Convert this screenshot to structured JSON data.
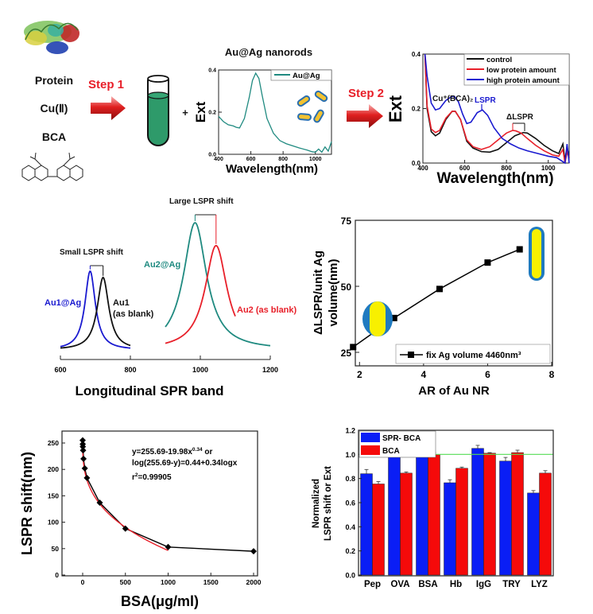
{
  "figure": {
    "scheme": {
      "reagents": [
        "Protein",
        "Cu(Ⅱ)",
        "BCA"
      ],
      "step1_label": "Step 1",
      "step2_label": "Step 2",
      "plus": "+",
      "nanorods_title": "Au@Ag nanorods",
      "colors": {
        "step": "#e8202a",
        "tube": "#2e9a6a",
        "rod_core": "#f2c230",
        "rod_shell": "#2a6fb0"
      }
    }
  },
  "chart_data": [
    {
      "id": "auag-spectrum",
      "type": "line",
      "title": "",
      "xlabel": "Wavelength(nm)",
      "ylabel": "Ext",
      "xlim": [
        400,
        1100
      ],
      "ylim": [
        0.0,
        0.4
      ],
      "xticks": [
        "400",
        "600",
        "800",
        "1000"
      ],
      "yticks": [
        "0.0",
        "0.2",
        "0.4"
      ],
      "legend": {
        "placement": "top-right",
        "entries": [
          "Au@Ag"
        ]
      },
      "series": [
        {
          "name": "Au@Ag",
          "color": "#1f8a80",
          "x": [
            400,
            430,
            460,
            490,
            510,
            530,
            560,
            590,
            610,
            630,
            650,
            670,
            700,
            740,
            780,
            820,
            860,
            900,
            950,
            980,
            1000,
            1020,
            1040,
            1060,
            1080,
            1100
          ],
          "y": [
            0.18,
            0.155,
            0.14,
            0.135,
            0.128,
            0.125,
            0.17,
            0.27,
            0.35,
            0.385,
            0.36,
            0.28,
            0.17,
            0.1,
            0.065,
            0.05,
            0.04,
            0.03,
            0.02,
            0.012,
            0.01,
            0.025,
            0.01,
            0.035,
            0.015,
            0.06
          ]
        }
      ]
    },
    {
      "id": "protein-spectra",
      "type": "line",
      "xlabel": "Wavelength(nm)",
      "ylabel": "Ext",
      "xlim": [
        400,
        1100
      ],
      "ylim": [
        0.0,
        0.4
      ],
      "xticks": [
        "400",
        "600",
        "800",
        "1000"
      ],
      "yticks": [
        "0.0",
        "0.2",
        "0.4"
      ],
      "legend": {
        "placement": "top-right",
        "entries": [
          "control",
          "low protein amount",
          "high protein amount"
        ]
      },
      "annotations": [
        {
          "text": "Cu⁺(BCA)₂",
          "color": "#111111"
        },
        {
          "text": "LSPR",
          "color": "#1a1ad0"
        },
        {
          "text": "ΔLSPR",
          "color": "#111111"
        }
      ],
      "series": [
        {
          "name": "control",
          "color": "#111111",
          "x": [
            410,
            420,
            440,
            460,
            480,
            510,
            540,
            555,
            580,
            610,
            640,
            680,
            720,
            760,
            800,
            840,
            880,
            900,
            940,
            980,
            1020,
            1050,
            1070,
            1080,
            1090,
            1100
          ],
          "y": [
            0.4,
            0.2,
            0.115,
            0.1,
            0.11,
            0.16,
            0.19,
            0.19,
            0.16,
            0.08,
            0.055,
            0.042,
            0.04,
            0.05,
            0.075,
            0.1,
            0.112,
            0.11,
            0.09,
            0.065,
            0.045,
            0.035,
            0.07,
            0.01,
            0.06,
            0.02
          ]
        },
        {
          "name": "low protein amount",
          "color": "#e8202a",
          "x": [
            410,
            420,
            440,
            460,
            480,
            510,
            540,
            555,
            580,
            610,
            640,
            680,
            720,
            760,
            800,
            830,
            845,
            870,
            900,
            940,
            980,
            1020,
            1050,
            1070,
            1080,
            1090,
            1100
          ],
          "y": [
            0.4,
            0.21,
            0.125,
            0.112,
            0.12,
            0.165,
            0.19,
            0.19,
            0.16,
            0.085,
            0.06,
            0.05,
            0.06,
            0.085,
            0.11,
            0.12,
            0.118,
            0.11,
            0.09,
            0.065,
            0.045,
            0.03,
            0.025,
            0.05,
            0.0,
            0.04,
            0.02
          ]
        },
        {
          "name": "high protein amount",
          "color": "#1a1ad0",
          "x": [
            410,
            420,
            440,
            460,
            480,
            510,
            540,
            550,
            570,
            590,
            610,
            630,
            660,
            685,
            710,
            740,
            780,
            820,
            860,
            900,
            950,
            1000,
            1040,
            1060,
            1080,
            1090,
            1100
          ],
          "y": [
            0.4,
            0.32,
            0.22,
            0.195,
            0.2,
            0.23,
            0.245,
            0.245,
            0.225,
            0.18,
            0.145,
            0.15,
            0.185,
            0.195,
            0.175,
            0.13,
            0.09,
            0.07,
            0.055,
            0.045,
            0.035,
            0.025,
            0.02,
            0.01,
            0.0,
            0.07,
            0.0
          ]
        }
      ]
    },
    {
      "id": "lspr-shift-scheme",
      "type": "line",
      "xlabel": "Longitudinal SPR band",
      "xlim": [
        600,
        1200
      ],
      "xticks": [
        "600",
        "800",
        "1000",
        "1200"
      ],
      "annotations": [
        {
          "text": "Small LSPR shift",
          "color": "#111111"
        },
        {
          "text": "Large LSPR shift",
          "color": "#111111"
        }
      ],
      "series": [
        {
          "name": "Au1@Ag",
          "color": "#1a1ad0",
          "peak": 685,
          "range": [
            600,
            800
          ],
          "height": 0.62
        },
        {
          "name": "Au1",
          "sub": "(as blank)",
          "color": "#111111",
          "peak": 722,
          "range": [
            600,
            800
          ],
          "height": 0.57
        },
        {
          "name": "Au2@Ag",
          "color": "#1f8a80",
          "peak": 985,
          "range": [
            900,
            1200
          ],
          "height": 1.0
        },
        {
          "name": "Au2 (as blank)",
          "color": "#e8202a",
          "peak": 1045,
          "range": [
            900,
            1100
          ],
          "height": 0.82
        }
      ]
    },
    {
      "id": "ar-dependence",
      "type": "line",
      "xlabel": "AR of Au NR",
      "ylabel": "ΔLSPR/unit Ag volume(nm)",
      "xlim": [
        1,
        8
      ],
      "ylim": [
        20,
        75
      ],
      "xticks": [
        "2",
        "4",
        "6",
        "8"
      ],
      "yticks": [
        "25",
        "50",
        "75"
      ],
      "legend": {
        "placement": "bottom-right",
        "entries": [
          "fix Ag volume 4460nm³"
        ]
      },
      "series": [
        {
          "name": "fix Ag volume 4460nm³",
          "color": "#000000",
          "x": [
            1.8,
            3.08,
            4.5,
            6.0,
            7.0
          ],
          "y": [
            27,
            38,
            49,
            59,
            64
          ]
        }
      ]
    },
    {
      "id": "bsa-calibration",
      "type": "scatter",
      "xlabel": "BSA(μg/ml)",
      "ylabel": "LSPR shift(nm)",
      "xlim": [
        -250,
        2050
      ],
      "ylim": [
        0,
        275
      ],
      "xticks": [
        "0",
        "500",
        "1000",
        "1500",
        "2000"
      ],
      "yticks": [
        "0",
        "50",
        "100",
        "150",
        "200",
        "250"
      ],
      "annotations": [
        {
          "text": "y=255.69-19.98x",
          "sup": "0.34",
          "tail": " or"
        },
        {
          "text": "log(255.69-y)=0.44+0.34logx"
        },
        {
          "text": "r",
          "sup": "2",
          "tail": "=0.99905"
        }
      ],
      "series": [
        {
          "name": "data",
          "color": "#000000",
          "x": [
            0,
            1,
            2,
            5,
            10,
            25,
            50,
            200,
            500,
            1000,
            2000
          ],
          "y": [
            255,
            248,
            243,
            236,
            220,
            202,
            184,
            137,
            88,
            53,
            45
          ]
        },
        {
          "name": "fit",
          "color": "#e8202a",
          "equation": "y=255.69-19.98x^0.34",
          "x_range": [
            0,
            1000
          ]
        }
      ]
    },
    {
      "id": "protein-selectivity",
      "type": "bar",
      "ylabel": "Normalized LSPR shift or Ext",
      "ylim": [
        0.0,
        1.2
      ],
      "yticks": [
        "0.0",
        "0.2",
        "0.4",
        "0.6",
        "0.8",
        "1.0",
        "1.2"
      ],
      "reference_line": {
        "y": 1.0,
        "color": "#55dd55"
      },
      "categories": [
        "Pep",
        "OVA",
        "BSA",
        "Hb",
        "IgG",
        "TRY",
        "LYZ"
      ],
      "legend": {
        "placement": "top-left",
        "entries": [
          "SPR- BCA",
          "BCA"
        ]
      },
      "series": [
        {
          "name": "SPR- BCA",
          "color": "#0a1ef5",
          "values": [
            0.84,
            0.995,
            1.0,
            0.765,
            1.05,
            0.945,
            0.68
          ],
          "errors": [
            0.035,
            0.025,
            0.02,
            0.025,
            0.025,
            0.03,
            0.02
          ]
        },
        {
          "name": "BCA",
          "color": "#f50a0a",
          "values": [
            0.755,
            0.845,
            1.0,
            0.885,
            1.01,
            1.015,
            0.845
          ],
          "errors": [
            0.02,
            0.01,
            0.015,
            0.01,
            0.005,
            0.02,
            0.02
          ]
        }
      ]
    }
  ]
}
